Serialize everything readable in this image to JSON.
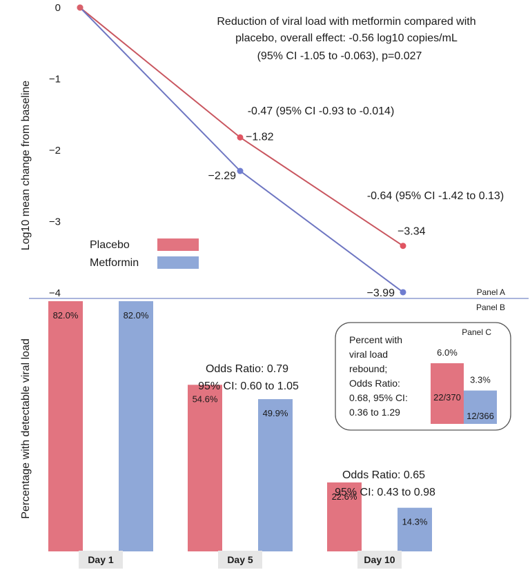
{
  "colors": {
    "placebo": "#e27480",
    "metformin": "#8fa8d8",
    "placebo_line": "#c9565f",
    "metformin_line": "#6e76c2",
    "divider": "#aab4dc"
  },
  "chart_data": [
    {
      "type": "line",
      "panel": "Panel A",
      "ylabel": "Log10 mean change from baseline",
      "yticks": [
        "0",
        "−1",
        "−2",
        "−3",
        "−4"
      ],
      "ylim": [
        -4,
        0
      ],
      "x": [
        "Day 1",
        "Day 5",
        "Day 10"
      ],
      "series": [
        {
          "name": "Placebo",
          "values": [
            0,
            -1.82,
            -3.34
          ],
          "labels": [
            "",
            "−1.82",
            "−3.34"
          ]
        },
        {
          "name": "Metformin",
          "values": [
            0,
            -2.29,
            -3.99
          ],
          "labels": [
            "",
            "−2.29",
            "−3.99"
          ]
        }
      ],
      "annotations": {
        "overall_line1": "Reduction of viral load with metformin compared with",
        "overall_line2": "placebo, overall effect: -0.56 log10 copies/mL",
        "overall_line3": "(95% CI -1.05 to -0.063), p=0.027",
        "day5": "-0.47 (95% CI -0.93 to -0.014)",
        "day10": "-0.64 (95% CI -1.42 to 0.13)"
      },
      "legend": [
        "Placebo",
        "Metformin"
      ]
    },
    {
      "type": "bar",
      "panel": "Panel B",
      "ylabel": "Percentage with detectable viral load",
      "categories": [
        "Day 1",
        "Day 5",
        "Day 10"
      ],
      "series": [
        {
          "name": "Placebo",
          "values": [
            82.0,
            54.6,
            22.6
          ],
          "labels": [
            "82.0%",
            "54.6%",
            "22.6%"
          ]
        },
        {
          "name": "Metformin",
          "values": [
            82.0,
            49.9,
            14.3
          ],
          "labels": [
            "82.0%",
            "49.9%",
            "14.3%"
          ]
        }
      ],
      "odds_ratios": [
        {
          "day": "Day 5",
          "line1": "Odds Ratio: 0.79",
          "line2": "95% CI: 0.60 to 1.05"
        },
        {
          "day": "Day 10",
          "line1": "Odds Ratio: 0.65",
          "line2": "95% CI: 0.43 to 0.98"
        }
      ]
    },
    {
      "type": "bar",
      "panel": "Panel C",
      "text_lines": [
        "Percent with",
        "viral load",
        "rebound;",
        "Odds Ratio:",
        "0.68, 95% CI:",
        "0.36 to 1.29"
      ],
      "series": [
        {
          "name": "Placebo",
          "value": 6.0,
          "label": "6.0%",
          "count": "22/370"
        },
        {
          "name": "Metformin",
          "value": 3.3,
          "label": "3.3%",
          "count": "12/366"
        }
      ]
    }
  ]
}
